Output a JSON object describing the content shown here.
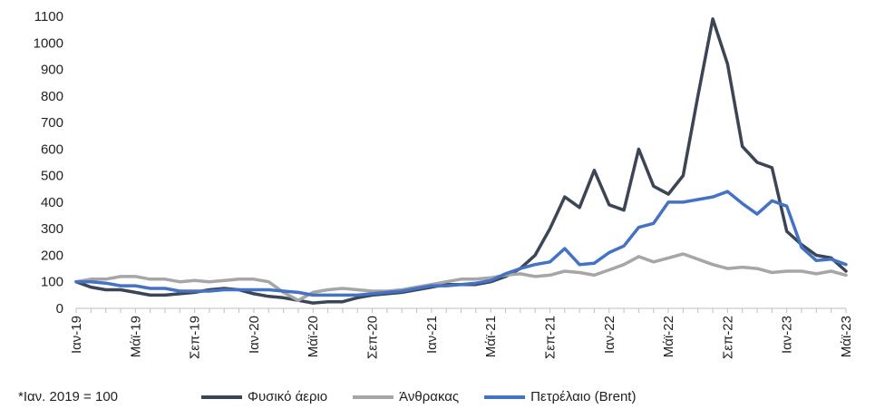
{
  "chart_data": {
    "type": "line",
    "title": "",
    "xlabel": "",
    "ylabel": "",
    "ylim": [
      0,
      1100
    ],
    "yticks": [
      0,
      100,
      200,
      300,
      400,
      500,
      600,
      700,
      800,
      900,
      1000,
      1100
    ],
    "grid": false,
    "legend_placement": "bottom",
    "x": [
      "Jan-19",
      "Feb-19",
      "Mar-19",
      "Apr-19",
      "May-19",
      "Jun-19",
      "Jul-19",
      "Aug-19",
      "Sep-19",
      "Oct-19",
      "Nov-19",
      "Dec-19",
      "Jan-20",
      "Feb-20",
      "Mar-20",
      "Apr-20",
      "May-20",
      "Jun-20",
      "Jul-20",
      "Aug-20",
      "Sep-20",
      "Oct-20",
      "Nov-20",
      "Dec-20",
      "Jan-21",
      "Feb-21",
      "Mar-21",
      "Apr-21",
      "May-21",
      "Jun-21",
      "Jul-21",
      "Aug-21",
      "Sep-21",
      "Oct-21",
      "Nov-21",
      "Dec-21",
      "Jan-22",
      "Feb-22",
      "Mar-22",
      "Apr-22",
      "May-22",
      "Jun-22",
      "Jul-22",
      "Aug-22",
      "Sep-22",
      "Oct-22",
      "Nov-22",
      "Dec-22",
      "Jan-23",
      "Feb-23",
      "Mar-23",
      "Apr-23",
      "May-23"
    ],
    "xtick_labels": [
      {
        "index": 0,
        "label": "Ιαν-19"
      },
      {
        "index": 4,
        "label": "Μάϊ-19"
      },
      {
        "index": 8,
        "label": "Σεπ-19"
      },
      {
        "index": 12,
        "label": "Ιαν-20"
      },
      {
        "index": 16,
        "label": "Μάϊ-20"
      },
      {
        "index": 20,
        "label": "Σεπ-20"
      },
      {
        "index": 24,
        "label": "Ιαν-21"
      },
      {
        "index": 28,
        "label": "Μάϊ-21"
      },
      {
        "index": 32,
        "label": "Σεπ-21"
      },
      {
        "index": 36,
        "label": "Ιαν-22"
      },
      {
        "index": 40,
        "label": "Μάϊ-22"
      },
      {
        "index": 44,
        "label": "Σεπ-22"
      },
      {
        "index": 48,
        "label": "Ιαν-23"
      },
      {
        "index": 52,
        "label": "Μάϊ-23"
      }
    ],
    "series": [
      {
        "name": "Φυσικό άεριο",
        "color": "#3b4555",
        "values": [
          100,
          80,
          70,
          70,
          60,
          50,
          50,
          55,
          60,
          70,
          75,
          70,
          55,
          45,
          40,
          30,
          20,
          25,
          25,
          40,
          50,
          55,
          60,
          70,
          80,
          90,
          90,
          90,
          100,
          120,
          150,
          200,
          300,
          420,
          380,
          520,
          390,
          370,
          600,
          460,
          430,
          500,
          800,
          1090,
          920,
          610,
          550,
          530,
          290,
          240,
          200,
          190,
          140
        ]
      },
      {
        "name": "Άνθρακας",
        "color": "#a6a6a6",
        "values": [
          100,
          110,
          110,
          120,
          120,
          110,
          110,
          100,
          105,
          100,
          105,
          110,
          110,
          100,
          60,
          30,
          60,
          70,
          75,
          70,
          65,
          65,
          70,
          80,
          90,
          100,
          110,
          110,
          115,
          125,
          130,
          120,
          125,
          140,
          135,
          125,
          145,
          165,
          195,
          175,
          190,
          205,
          185,
          165,
          150,
          155,
          150,
          135,
          140,
          140,
          130,
          140,
          125
        ]
      },
      {
        "name": "Πετρέλαιο (Brent)",
        "color": "#4472c4",
        "values": [
          100,
          100,
          95,
          85,
          85,
          75,
          75,
          65,
          65,
          65,
          70,
          70,
          70,
          70,
          65,
          60,
          50,
          50,
          50,
          50,
          55,
          60,
          65,
          75,
          85,
          85,
          90,
          95,
          105,
          130,
          150,
          165,
          175,
          225,
          165,
          170,
          210,
          235,
          305,
          320,
          400,
          400,
          410,
          420,
          440,
          395,
          355,
          405,
          385,
          230,
          180,
          185,
          165
        ]
      }
    ]
  },
  "footnote": "*Ιαν. 2019 = 100"
}
